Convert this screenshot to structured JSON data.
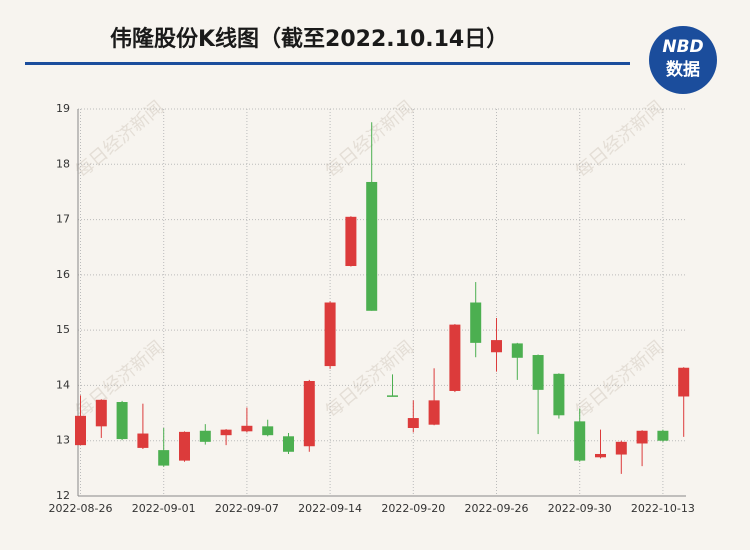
{
  "chart_data": {
    "type": "candlestick",
    "title": "伟隆股份K线图（截至2022.10.14日）",
    "logo_top": "NBD",
    "logo_bottom": "数据",
    "watermark": "每日经济新闻",
    "categories": [
      "2022-08-26",
      null,
      null,
      null,
      "2022-09-01",
      null,
      null,
      null,
      "2022-09-07",
      null,
      null,
      null,
      "2022-09-14",
      null,
      null,
      null,
      "2022-09-20",
      null,
      null,
      null,
      "2022-09-26",
      null,
      null,
      null,
      "2022-09-30",
      null,
      null,
      null,
      "2022-10-13",
      null
    ],
    "open": [
      12.92,
      13.26,
      13.7,
      12.87,
      12.83,
      12.64,
      13.18,
      13.1,
      13.17,
      13.26,
      13.08,
      12.9,
      14.35,
      16.16,
      17.68,
      13.82,
      13.23,
      13.29,
      13.9,
      15.5,
      14.6,
      14.76,
      14.55,
      14.21,
      13.35,
      12.7,
      12.75,
      12.95,
      13.18,
      13.8
    ],
    "high": [
      13.82,
      13.75,
      13.72,
      13.67,
      13.23,
      13.17,
      13.3,
      13.21,
      13.6,
      13.38,
      13.14,
      14.1,
      15.52,
      17.06,
      18.76,
      14.2,
      13.73,
      14.31,
      15.11,
      15.87,
      15.22,
      14.77,
      14.56,
      14.22,
      13.58,
      13.2,
      13.0,
      13.19,
      13.2,
      14.33
    ],
    "low": [
      12.92,
      13.05,
      13.01,
      12.85,
      12.53,
      12.62,
      12.93,
      12.92,
      13.15,
      13.08,
      12.76,
      12.8,
      14.3,
      16.15,
      15.35,
      13.8,
      13.15,
      13.28,
      13.88,
      14.51,
      14.25,
      14.1,
      13.12,
      13.4,
      12.62,
      12.68,
      12.4,
      12.54,
      12.98,
      13.07
    ],
    "close": [
      13.45,
      13.74,
      13.03,
      13.13,
      12.55,
      13.16,
      12.98,
      13.2,
      13.27,
      13.1,
      12.8,
      14.08,
      15.5,
      17.05,
      15.35,
      13.8,
      13.41,
      13.73,
      15.1,
      14.77,
      14.82,
      14.5,
      13.92,
      13.46,
      12.64,
      12.76,
      12.98,
      13.18,
      13.0,
      14.32
    ],
    "up_color": "#dc3b3b",
    "down_color": "#4caf50",
    "ylim": [
      12,
      19
    ],
    "yticks": [
      12,
      13,
      14,
      15,
      16,
      17,
      18,
      19
    ],
    "grid": true
  }
}
